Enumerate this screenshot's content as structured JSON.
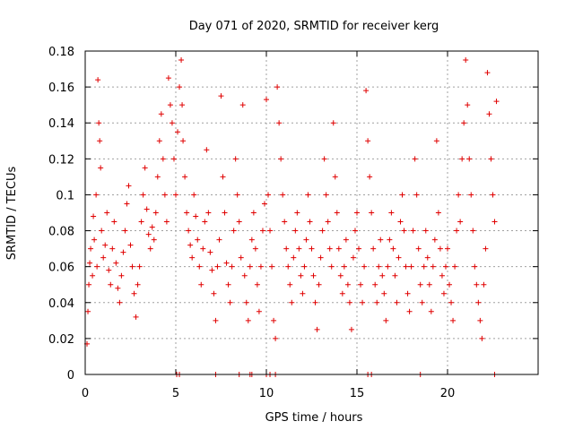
{
  "chart_data": {
    "type": "scatter",
    "title": "Day 071 of 2020, SRMTID for receiver kerg",
    "xlabel": "GPS time / hours",
    "ylabel": "SRMTID / TECUs",
    "xlim": [
      0,
      25
    ],
    "ylim": [
      0,
      0.18
    ],
    "x_ticks": [
      0,
      5,
      10,
      15,
      20
    ],
    "y_ticks": [
      0,
      0.02,
      0.04,
      0.06,
      0.08,
      0.1,
      0.12,
      0.14,
      0.16,
      0.18
    ],
    "x_tick_labels": [
      "0",
      "5",
      "10",
      "15",
      "20"
    ],
    "y_tick_labels": [
      "0",
      "0.02",
      "0.04",
      "0.06",
      "0.08",
      "0.1",
      "0.12",
      "0.14",
      "0.16",
      "0.18"
    ],
    "grid": true,
    "marker": "plus",
    "color": "#e00000",
    "series": [
      {
        "name": "SRMTID",
        "points": [
          [
            0.1,
            0.017
          ],
          [
            0.15,
            0.035
          ],
          [
            0.2,
            0.05
          ],
          [
            0.25,
            0.062
          ],
          [
            0.3,
            0.07
          ],
          [
            0.4,
            0.055
          ],
          [
            0.45,
            0.088
          ],
          [
            0.5,
            0.075
          ],
          [
            0.6,
            0.1
          ],
          [
            0.65,
            0.06
          ],
          [
            0.7,
            0.164
          ],
          [
            0.75,
            0.14
          ],
          [
            0.8,
            0.13
          ],
          [
            0.85,
            0.115
          ],
          [
            0.9,
            0.08
          ],
          [
            1.0,
            0.065
          ],
          [
            1.1,
            0.072
          ],
          [
            1.2,
            0.09
          ],
          [
            1.3,
            0.058
          ],
          [
            1.4,
            0.05
          ],
          [
            1.5,
            0.07
          ],
          [
            1.6,
            0.085
          ],
          [
            1.7,
            0.062
          ],
          [
            1.8,
            0.048
          ],
          [
            1.9,
            0.04
          ],
          [
            2.0,
            0.055
          ],
          [
            2.1,
            0.068
          ],
          [
            2.2,
            0.08
          ],
          [
            2.3,
            0.095
          ],
          [
            2.4,
            0.105
          ],
          [
            2.5,
            0.072
          ],
          [
            2.6,
            0.06
          ],
          [
            2.7,
            0.045
          ],
          [
            2.8,
            0.032
          ],
          [
            2.9,
            0.05
          ],
          [
            3.0,
            0.06
          ],
          [
            3.1,
            0.085
          ],
          [
            3.2,
            0.1
          ],
          [
            3.3,
            0.115
          ],
          [
            3.4,
            0.092
          ],
          [
            3.5,
            0.078
          ],
          [
            3.6,
            0.07
          ],
          [
            3.7,
            0.082
          ],
          [
            3.8,
            0.075
          ],
          [
            3.9,
            0.09
          ],
          [
            4.0,
            0.11
          ],
          [
            4.1,
            0.13
          ],
          [
            4.2,
            0.145
          ],
          [
            4.3,
            0.12
          ],
          [
            4.4,
            0.1
          ],
          [
            4.5,
            0.085
          ],
          [
            4.6,
            0.165
          ],
          [
            4.7,
            0.15
          ],
          [
            4.8,
            0.14
          ],
          [
            4.9,
            0.12
          ],
          [
            5.0,
            0.1
          ],
          [
            5.1,
            0.135
          ],
          [
            5.2,
            0.16
          ],
          [
            5.3,
            0.175
          ],
          [
            5.35,
            0.15
          ],
          [
            5.4,
            0.13
          ],
          [
            5.5,
            0.11
          ],
          [
            5.6,
            0.09
          ],
          [
            5.7,
            0.08
          ],
          [
            5.8,
            0.072
          ],
          [
            5.9,
            0.065
          ],
          [
            6.0,
            0.1
          ],
          [
            6.1,
            0.088
          ],
          [
            6.2,
            0.075
          ],
          [
            6.3,
            0.06
          ],
          [
            6.4,
            0.05
          ],
          [
            6.5,
            0.07
          ],
          [
            6.6,
            0.085
          ],
          [
            6.7,
            0.125
          ],
          [
            6.8,
            0.09
          ],
          [
            6.9,
            0.068
          ],
          [
            7.0,
            0.058
          ],
          [
            7.1,
            0.045
          ],
          [
            7.2,
            0.03
          ],
          [
            7.3,
            0.06
          ],
          [
            7.4,
            0.075
          ],
          [
            7.5,
            0.155
          ],
          [
            7.6,
            0.11
          ],
          [
            7.7,
            0.09
          ],
          [
            7.8,
            0.062
          ],
          [
            7.9,
            0.05
          ],
          [
            8.0,
            0.04
          ],
          [
            8.1,
            0.06
          ],
          [
            8.2,
            0.08
          ],
          [
            8.3,
            0.12
          ],
          [
            8.4,
            0.1
          ],
          [
            8.5,
            0.085
          ],
          [
            8.6,
            0.065
          ],
          [
            8.7,
            0.15
          ],
          [
            8.8,
            0.055
          ],
          [
            8.9,
            0.04
          ],
          [
            9.0,
            0.03
          ],
          [
            9.1,
            0.06
          ],
          [
            9.2,
            0.075
          ],
          [
            9.3,
            0.09
          ],
          [
            9.4,
            0.07
          ],
          [
            9.5,
            0.05
          ],
          [
            9.6,
            0.035
          ],
          [
            9.7,
            0.06
          ],
          [
            9.8,
            0.08
          ],
          [
            9.9,
            0.095
          ],
          [
            10.0,
            0.153
          ],
          [
            10.1,
            0.1
          ],
          [
            10.2,
            0.08
          ],
          [
            10.3,
            0.06
          ],
          [
            10.4,
            0.03
          ],
          [
            10.5,
            0.02
          ],
          [
            10.6,
            0.16
          ],
          [
            10.7,
            0.14
          ],
          [
            10.8,
            0.12
          ],
          [
            10.9,
            0.1
          ],
          [
            11.0,
            0.085
          ],
          [
            11.1,
            0.07
          ],
          [
            11.2,
            0.06
          ],
          [
            11.3,
            0.05
          ],
          [
            11.4,
            0.04
          ],
          [
            11.5,
            0.065
          ],
          [
            11.6,
            0.08
          ],
          [
            11.7,
            0.09
          ],
          [
            11.8,
            0.07
          ],
          [
            11.9,
            0.055
          ],
          [
            12.0,
            0.045
          ],
          [
            12.1,
            0.06
          ],
          [
            12.2,
            0.075
          ],
          [
            12.3,
            0.1
          ],
          [
            12.4,
            0.085
          ],
          [
            12.5,
            0.07
          ],
          [
            12.6,
            0.055
          ],
          [
            12.7,
            0.04
          ],
          [
            12.8,
            0.025
          ],
          [
            12.9,
            0.05
          ],
          [
            13.0,
            0.065
          ],
          [
            13.1,
            0.08
          ],
          [
            13.2,
            0.12
          ],
          [
            13.3,
            0.1
          ],
          [
            13.4,
            0.085
          ],
          [
            13.5,
            0.07
          ],
          [
            13.6,
            0.06
          ],
          [
            13.7,
            0.14
          ],
          [
            13.8,
            0.11
          ],
          [
            13.9,
            0.09
          ],
          [
            14.0,
            0.07
          ],
          [
            14.1,
            0.055
          ],
          [
            14.2,
            0.045
          ],
          [
            14.3,
            0.06
          ],
          [
            14.4,
            0.075
          ],
          [
            14.5,
            0.05
          ],
          [
            14.6,
            0.04
          ],
          [
            14.7,
            0.025
          ],
          [
            14.8,
            0.065
          ],
          [
            14.9,
            0.08
          ],
          [
            15.0,
            0.09
          ],
          [
            15.1,
            0.07
          ],
          [
            15.2,
            0.05
          ],
          [
            15.3,
            0.04
          ],
          [
            15.4,
            0.06
          ],
          [
            15.5,
            0.158
          ],
          [
            15.6,
            0.13
          ],
          [
            15.7,
            0.11
          ],
          [
            15.8,
            0.09
          ],
          [
            15.9,
            0.07
          ],
          [
            16.0,
            0.05
          ],
          [
            16.1,
            0.04
          ],
          [
            16.2,
            0.06
          ],
          [
            16.3,
            0.075
          ],
          [
            16.4,
            0.055
          ],
          [
            16.5,
            0.045
          ],
          [
            16.6,
            0.03
          ],
          [
            16.7,
            0.06
          ],
          [
            16.8,
            0.075
          ],
          [
            16.9,
            0.09
          ],
          [
            17.0,
            0.07
          ],
          [
            17.1,
            0.055
          ],
          [
            17.2,
            0.04
          ],
          [
            17.3,
            0.065
          ],
          [
            17.4,
            0.085
          ],
          [
            17.5,
            0.1
          ],
          [
            17.6,
            0.08
          ],
          [
            17.7,
            0.06
          ],
          [
            17.8,
            0.045
          ],
          [
            17.9,
            0.035
          ],
          [
            18.0,
            0.06
          ],
          [
            18.1,
            0.08
          ],
          [
            18.2,
            0.12
          ],
          [
            18.3,
            0.1
          ],
          [
            18.4,
            0.07
          ],
          [
            18.5,
            0.05
          ],
          [
            18.6,
            0.04
          ],
          [
            18.7,
            0.06
          ],
          [
            18.8,
            0.08
          ],
          [
            18.9,
            0.065
          ],
          [
            19.0,
            0.05
          ],
          [
            19.1,
            0.035
          ],
          [
            19.2,
            0.06
          ],
          [
            19.3,
            0.075
          ],
          [
            19.4,
            0.13
          ],
          [
            19.5,
            0.09
          ],
          [
            19.6,
            0.07
          ],
          [
            19.7,
            0.055
          ],
          [
            19.8,
            0.045
          ],
          [
            19.9,
            0.06
          ],
          [
            20.0,
            0.07
          ],
          [
            20.1,
            0.05
          ],
          [
            20.2,
            0.04
          ],
          [
            20.3,
            0.03
          ],
          [
            20.4,
            0.06
          ],
          [
            20.5,
            0.08
          ],
          [
            20.6,
            0.1
          ],
          [
            20.7,
            0.085
          ],
          [
            20.8,
            0.12
          ],
          [
            20.9,
            0.14
          ],
          [
            21.0,
            0.175
          ],
          [
            21.1,
            0.15
          ],
          [
            21.2,
            0.12
          ],
          [
            21.3,
            0.1
          ],
          [
            21.4,
            0.08
          ],
          [
            21.5,
            0.06
          ],
          [
            21.6,
            0.05
          ],
          [
            21.7,
            0.04
          ],
          [
            21.8,
            0.03
          ],
          [
            21.9,
            0.02
          ],
          [
            22.0,
            0.05
          ],
          [
            22.1,
            0.07
          ],
          [
            22.2,
            0.168
          ],
          [
            22.3,
            0.145
          ],
          [
            22.4,
            0.12
          ],
          [
            22.5,
            0.1
          ],
          [
            22.6,
            0.085
          ],
          [
            22.7,
            0.152
          ]
        ]
      }
    ],
    "zero_points": [
      5.05,
      5.2,
      7.2,
      8.5,
      9.1,
      9.2,
      10.0,
      10.2,
      10.5,
      15.6,
      15.8,
      18.5,
      22.6
    ]
  }
}
